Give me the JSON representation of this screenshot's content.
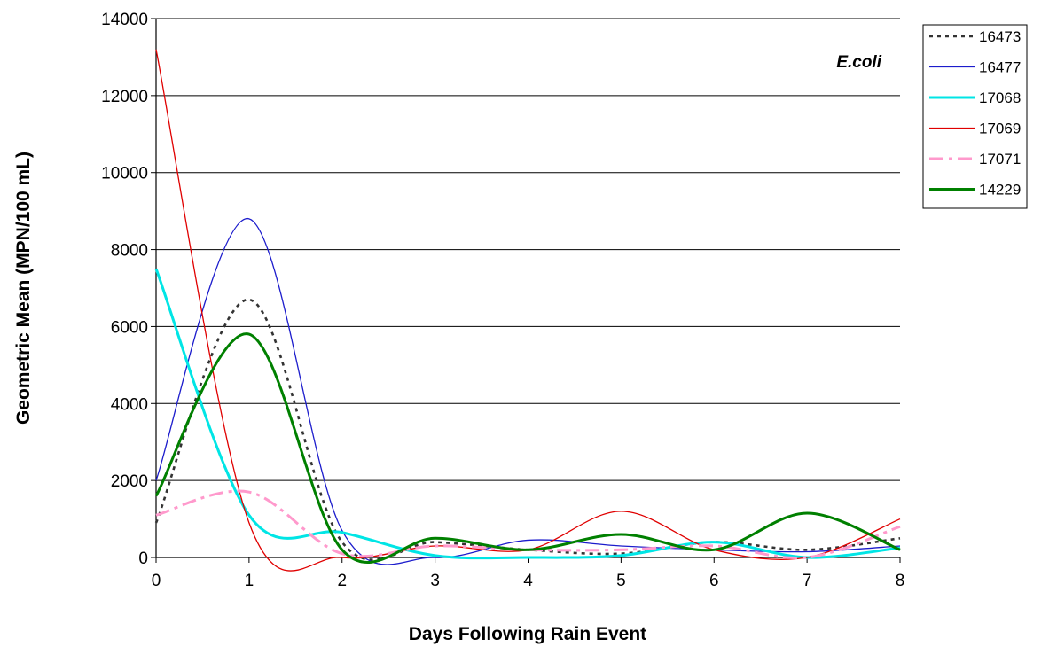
{
  "chart_data": {
    "type": "line",
    "xlabel": "Days Following Rain Event",
    "ylabel": "Geometric Mean (MPN/100 mL)",
    "annotation": "E.coli",
    "xlim": [
      0,
      8
    ],
    "ylim": [
      0,
      14000
    ],
    "x_ticks": [
      "0",
      "1",
      "2",
      "3",
      "4",
      "5",
      "6",
      "7",
      "8"
    ],
    "y_ticks": [
      "0",
      "2000",
      "4000",
      "6000",
      "8000",
      "10000",
      "12000",
      "14000"
    ],
    "grid": "horizontal",
    "legend_position": "top-right",
    "x": [
      0,
      1,
      2,
      3,
      4,
      5,
      6,
      7,
      8
    ],
    "series": [
      {
        "name": "16473",
        "color": "#333333",
        "style": "dotted",
        "values": [
          900,
          6700,
          400,
          400,
          200,
          100,
          400,
          200,
          500
        ]
      },
      {
        "name": "16477",
        "color": "#1c1ccc",
        "style": "solid-thin",
        "values": [
          2000,
          8800,
          700,
          0,
          450,
          300,
          200,
          150,
          300
        ]
      },
      {
        "name": "17068",
        "color": "#00e5e5",
        "style": "solid-thick",
        "values": [
          7500,
          1100,
          650,
          50,
          0,
          50,
          400,
          0,
          250
        ]
      },
      {
        "name": "17069",
        "color": "#e00000",
        "style": "solid-thin",
        "values": [
          13200,
          900,
          0,
          300,
          200,
          1200,
          200,
          0,
          1000
        ]
      },
      {
        "name": "17071",
        "color": "#ff99cc",
        "style": "dashdot",
        "values": [
          1100,
          1700,
          100,
          300,
          200,
          200,
          300,
          0,
          800
        ]
      },
      {
        "name": "14229",
        "color": "#008000",
        "style": "solid-thick",
        "values": [
          1600,
          5800,
          200,
          500,
          200,
          600,
          200,
          1150,
          200
        ]
      }
    ]
  }
}
